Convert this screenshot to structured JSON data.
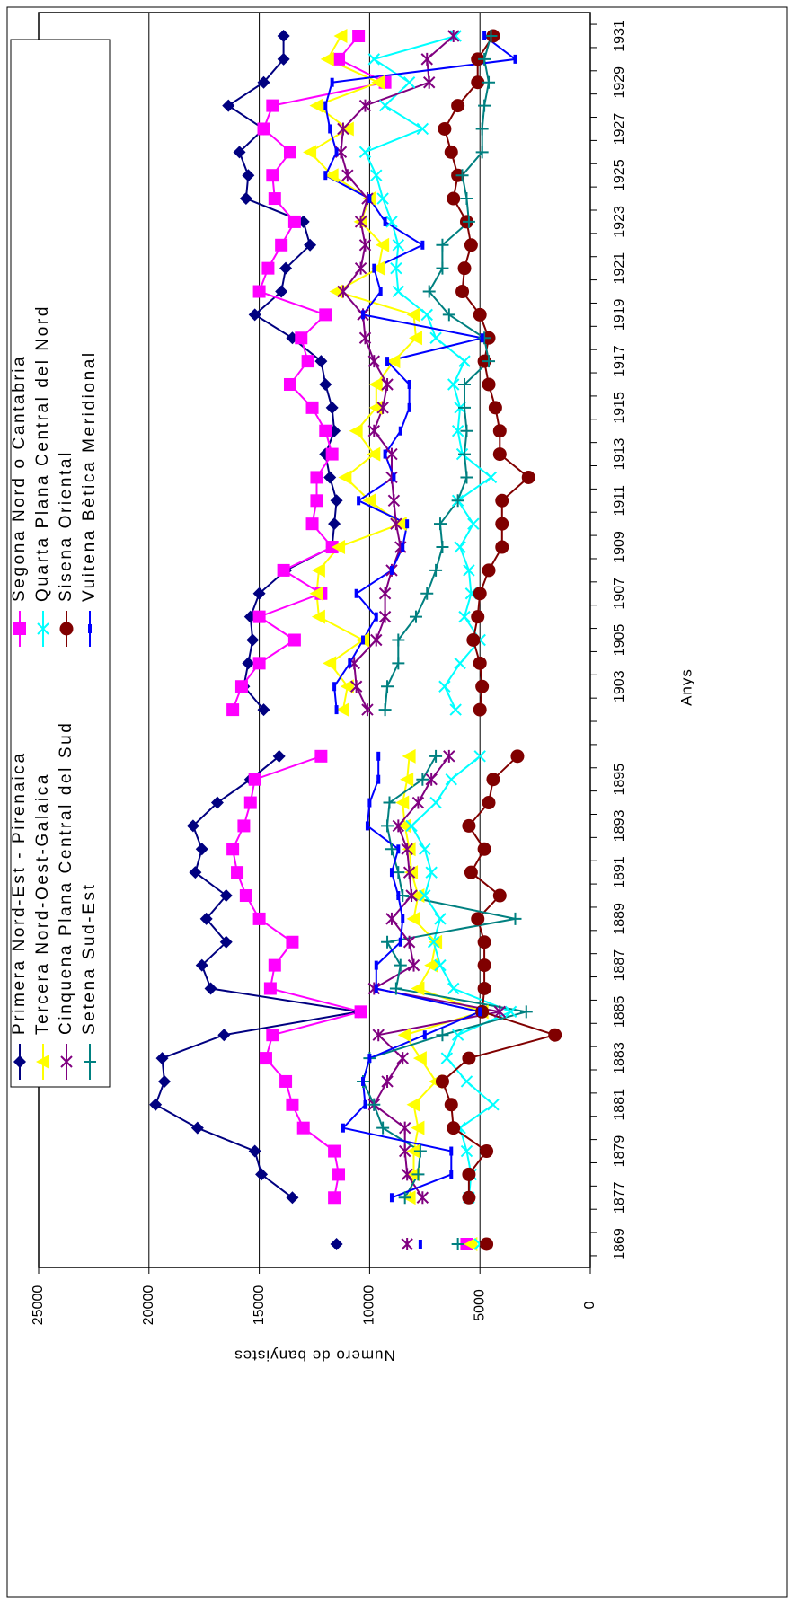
{
  "chart_data": {
    "type": "line",
    "x_label": "Anys",
    "y_label": "Numero de banyistes",
    "categories": [
      "1869",
      null,
      "1877",
      null,
      "1879",
      null,
      "1881",
      null,
      "1883",
      null,
      "1885",
      null,
      "1887",
      null,
      "1889",
      null,
      "1891",
      null,
      "1893",
      null,
      "1895",
      null,
      null,
      null,
      "1903",
      null,
      "1905",
      null,
      "1907",
      null,
      "1909",
      null,
      "1911",
      null,
      "1913",
      null,
      "1915",
      null,
      "1917",
      null,
      "1919",
      null,
      "1921",
      null,
      "1923",
      null,
      "1925",
      null,
      "1927",
      null,
      "1929",
      null,
      "1931"
    ],
    "ylim": [
      0,
      25000
    ],
    "yticks": [
      0,
      5000,
      10000,
      15000,
      20000,
      25000
    ],
    "grid": true,
    "series": [
      {
        "name": "Primera Nord-Est - Pirenaica",
        "color": "#000080",
        "marker": "diamond",
        "values": [
          11500,
          null,
          13500,
          14900,
          15200,
          17800,
          19700,
          19300,
          19400,
          16600,
          10500,
          17200,
          17600,
          16500,
          17400,
          16500,
          17900,
          17600,
          18000,
          16900,
          15400,
          14100,
          null,
          14800,
          15700,
          15500,
          15300,
          15400,
          15000,
          13800,
          11700,
          11600,
          11500,
          11800,
          12000,
          11600,
          11700,
          12000,
          12200,
          13500,
          15200,
          14000,
          13800,
          12700,
          13000,
          15600,
          15500,
          15900,
          14800,
          16400,
          14800,
          13900,
          13900
        ]
      },
      {
        "name": "Segona Nord o Cantabria",
        "color": "#ff00ff",
        "marker": "square",
        "values": [
          5600,
          null,
          11600,
          11400,
          11600,
          13000,
          13500,
          13800,
          14700,
          14400,
          10400,
          14500,
          14300,
          13500,
          15000,
          15600,
          16000,
          16200,
          15700,
          15400,
          15200,
          12200,
          null,
          16200,
          15800,
          15000,
          13400,
          15000,
          12200,
          13900,
          11700,
          12600,
          12400,
          12400,
          11700,
          12000,
          12600,
          13600,
          12800,
          13100,
          12000,
          15000,
          14600,
          14000,
          13400,
          14300,
          14400,
          13600,
          14800,
          14400,
          9300,
          11400,
          10500
        ]
      },
      {
        "name": "Tercera Nord-Oest-Galaica",
        "color": "#ffff00",
        "marker": "triangle",
        "values": [
          5400,
          null,
          8200,
          8000,
          8000,
          7800,
          8000,
          7000,
          7700,
          8400,
          4900,
          7800,
          7200,
          7000,
          8000,
          7800,
          8100,
          8200,
          8400,
          8500,
          8300,
          8200,
          null,
          11200,
          11000,
          11800,
          10300,
          12300,
          12400,
          12300,
          11400,
          8600,
          10000,
          11100,
          9800,
          10600,
          9700,
          9700,
          8900,
          7900,
          8000,
          11500,
          9600,
          9400,
          10400,
          10000,
          11700,
          12700,
          11000,
          12400,
          9600,
          11900,
          11300
        ]
      },
      {
        "name": "Quarta Plana Central del Nord",
        "color": "#00ffff",
        "marker": "x",
        "values": [
          5000,
          null,
          5500,
          5400,
          5600,
          5900,
          4400,
          5600,
          6500,
          6000,
          3600,
          6200,
          6800,
          7100,
          6800,
          7500,
          7200,
          7500,
          8100,
          7000,
          6300,
          5000,
          null,
          6100,
          6600,
          5900,
          5000,
          5700,
          5400,
          5500,
          5900,
          5300,
          6000,
          4500,
          5800,
          6000,
          5900,
          6200,
          5700,
          7000,
          7400,
          8700,
          8800,
          8700,
          9000,
          9400,
          9700,
          10200,
          7600,
          9300,
          8200,
          9800,
          6100
        ]
      },
      {
        "name": "Cinquena Plana Central del Sud",
        "color": "#800080",
        "marker": "star",
        "values": [
          8300,
          null,
          7600,
          8300,
          8400,
          8400,
          9800,
          9200,
          8500,
          9600,
          4100,
          9800,
          8000,
          8200,
          9000,
          8100,
          8200,
          8300,
          8700,
          7800,
          7200,
          6400,
          null,
          10100,
          10600,
          10700,
          9700,
          9300,
          9300,
          9000,
          8600,
          8800,
          8900,
          9000,
          9000,
          9800,
          9400,
          9200,
          9800,
          10200,
          10300,
          11200,
          10400,
          10200,
          10400,
          10100,
          11000,
          11300,
          11200,
          10200,
          7300,
          7400,
          6200
        ]
      },
      {
        "name": "Sisena Oriental",
        "color": "#800000",
        "marker": "circle",
        "values": [
          4700,
          null,
          5500,
          5500,
          4700,
          6200,
          6300,
          6700,
          5500,
          1600,
          4900,
          4800,
          4800,
          4800,
          5100,
          4100,
          5400,
          4800,
          5500,
          4600,
          4400,
          3300,
          null,
          5000,
          4900,
          5000,
          5300,
          5100,
          5000,
          4600,
          4000,
          4000,
          4000,
          2800,
          4100,
          4100,
          4300,
          4600,
          4800,
          4600,
          5000,
          5800,
          5700,
          5400,
          5600,
          6200,
          6000,
          6300,
          6600,
          6000,
          5100,
          5100,
          4400
        ]
      },
      {
        "name": "Setena Sud-Est",
        "color": "#008080",
        "marker": "plus",
        "values": [
          6000,
          null,
          8400,
          7800,
          7700,
          9400,
          9800,
          10300,
          10000,
          6700,
          2900,
          8800,
          8600,
          9200,
          3400,
          8500,
          8700,
          9000,
          9200,
          9100,
          7600,
          7000,
          null,
          9300,
          9200,
          8700,
          8700,
          7900,
          7400,
          7000,
          6700,
          6800,
          6000,
          5600,
          5700,
          5600,
          5700,
          5700,
          4600,
          4800,
          6400,
          7300,
          6700,
          6700,
          5500,
          5600,
          5800,
          4900,
          4900,
          4800,
          4600,
          4800,
          4500
        ]
      },
      {
        "name": "Vuitena Bètica Meridional",
        "color": "#0000ff",
        "marker": "dash",
        "values": [
          7700,
          null,
          9000,
          6300,
          6300,
          11200,
          10200,
          10300,
          10000,
          7500,
          5000,
          9700,
          9700,
          8600,
          8500,
          8700,
          9000,
          8700,
          10100,
          10000,
          9600,
          9600,
          null,
          11500,
          11600,
          10900,
          10300,
          9700,
          10600,
          9000,
          8500,
          8300,
          10500,
          8900,
          9300,
          8600,
          8200,
          8200,
          9200,
          4900,
          10300,
          9500,
          9800,
          7600,
          9300,
          10000,
          12000,
          11500,
          11800,
          12000,
          11700,
          3400,
          4800
        ]
      }
    ]
  }
}
